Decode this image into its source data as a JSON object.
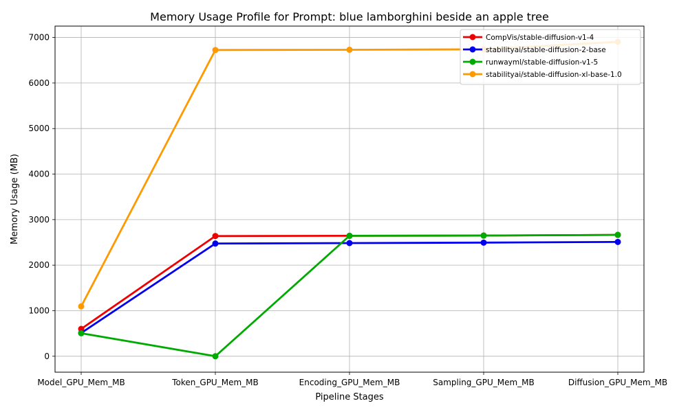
{
  "chart_data": {
    "type": "line",
    "title": "Memory Usage Profile for Prompt: blue lamborghini beside an apple tree",
    "xlabel": "Pipeline Stages",
    "ylabel": "Memory Usage (MB)",
    "categories": [
      "Model_GPU_Mem_MB",
      "Token_GPU_Mem_MB",
      "Encoding_GPU_Mem_MB",
      "Sampling_GPU_Mem_MB",
      "Diffusion_GPU_Mem_MB"
    ],
    "ylim": [
      -350,
      7250
    ],
    "yticks": [
      0,
      1000,
      2000,
      3000,
      4000,
      5000,
      6000,
      7000
    ],
    "grid": true,
    "legend_position": "top-right",
    "series": [
      {
        "name": "CompVis/stable-diffusion-v1-4",
        "color": "#ee0000",
        "values": [
          600,
          2640,
          2645,
          2650,
          2665
        ]
      },
      {
        "name": "stabilityai/stable-diffusion-2-base",
        "color": "#0000ee",
        "values": [
          510,
          2475,
          2485,
          2495,
          2510
        ]
      },
      {
        "name": "runwayml/stable-diffusion-v1-5",
        "color": "#00aa00",
        "values": [
          505,
          0,
          2645,
          2650,
          2665
        ]
      },
      {
        "name": "stabilityai/stable-diffusion-xl-base-1.0",
        "color": "#ff9900",
        "values": [
          1095,
          6725,
          6730,
          6740,
          6905
        ]
      }
    ]
  }
}
